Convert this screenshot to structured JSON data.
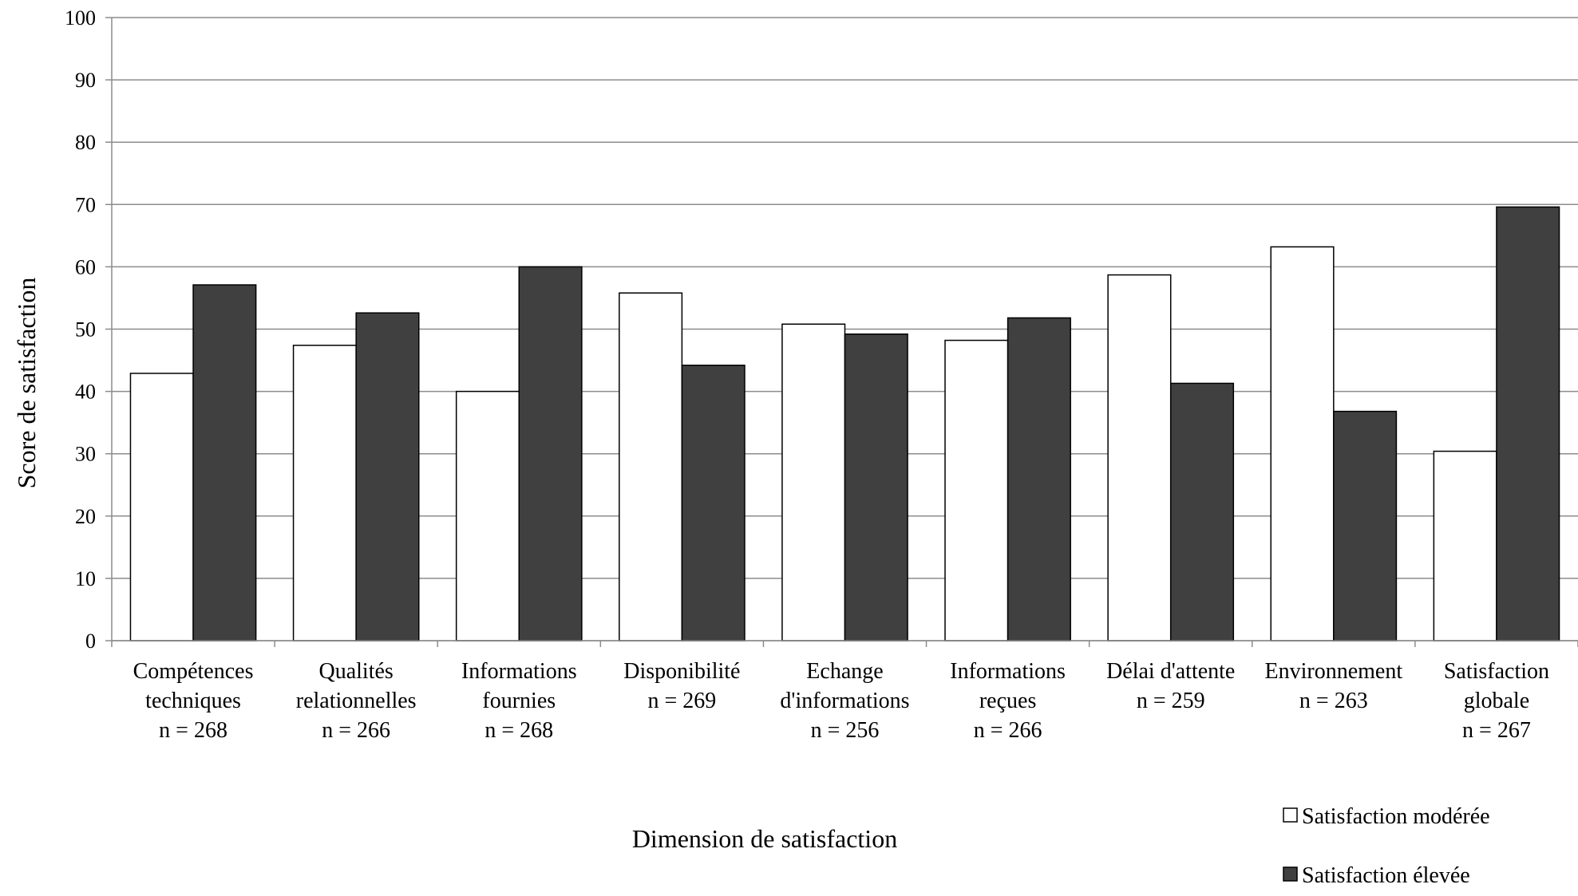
{
  "chart_data": {
    "type": "bar",
    "xlabel": "Dimension de satisfaction",
    "ylabel": "Score de satisfaction",
    "ylim": [
      0,
      100
    ],
    "yticks": [
      0,
      10,
      20,
      30,
      40,
      50,
      60,
      70,
      80,
      90,
      100
    ],
    "grid": true,
    "legend_position": "bottom-right",
    "categories": [
      [
        "Compétences",
        "techniques",
        "n =  268"
      ],
      [
        "Qualités",
        "relationnelles",
        "n =  266"
      ],
      [
        "Informations",
        "fournies",
        "n =  268"
      ],
      [
        "Disponibilité",
        "n =  269"
      ],
      [
        "Echange",
        "d'informations",
        "n =  256"
      ],
      [
        "Informations",
        "reçues",
        "n =  266"
      ],
      [
        "Délai d'attente",
        "n =  259"
      ],
      [
        "Environnement",
        "n =  263"
      ],
      [
        "Satisfaction",
        "globale",
        "n =  267"
      ]
    ],
    "series": [
      {
        "name": "Satisfaction modérée",
        "color": "#ffffff",
        "values": [
          42.9,
          47.4,
          40.0,
          55.8,
          50.8,
          48.2,
          58.7,
          63.2,
          30.4
        ]
      },
      {
        "name": "Satisfaction élevée",
        "color": "#404040",
        "values": [
          57.1,
          52.6,
          60.0,
          44.2,
          49.2,
          51.8,
          41.3,
          36.8,
          69.6
        ]
      }
    ]
  }
}
